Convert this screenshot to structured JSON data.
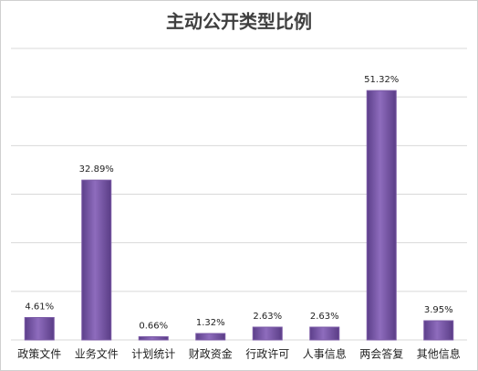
{
  "chart_data": {
    "type": "bar",
    "title": "主动公开类型比例",
    "categories": [
      "政策文件",
      "业务文件",
      "计划统计",
      "财政资金",
      "行政许可",
      "人事信息",
      "两会答复",
      "其他信息"
    ],
    "values": [
      4.61,
      32.89,
      0.66,
      1.32,
      2.63,
      2.63,
      51.32,
      3.95
    ],
    "value_labels": [
      "4.61%",
      "32.89%",
      "0.66%",
      "1.32%",
      "2.63%",
      "2.63%",
      "51.32%",
      "3.95%"
    ],
    "color": "#7b5aa6",
    "ylim": [
      0,
      60
    ],
    "yticks": [
      0,
      10,
      20,
      30,
      40,
      50,
      60
    ],
    "grid": true
  }
}
